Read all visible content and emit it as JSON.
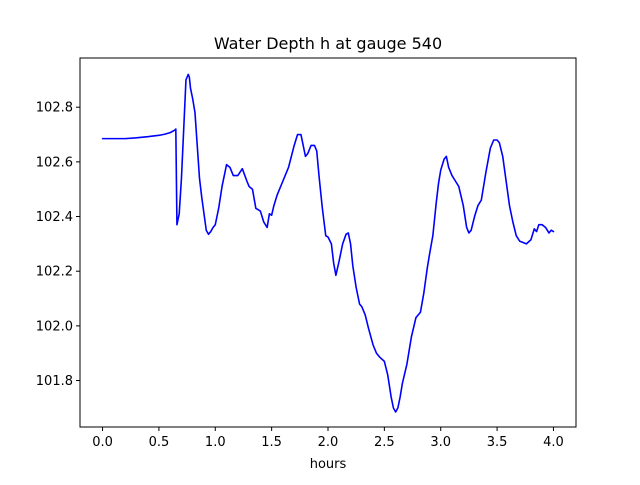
{
  "chart_data": {
    "type": "line",
    "title": "Water Depth h at gauge 540",
    "xlabel": "hours",
    "ylabel": "",
    "xlim": [
      -0.2,
      4.2
    ],
    "ylim": [
      101.63,
      102.98
    ],
    "xticks": [
      0.0,
      0.5,
      1.0,
      1.5,
      2.0,
      2.5,
      3.0,
      3.5,
      4.0
    ],
    "xtick_labels": [
      "0.0",
      "0.5",
      "1.0",
      "1.5",
      "2.0",
      "2.5",
      "3.0",
      "3.5",
      "4.0"
    ],
    "yticks": [
      101.8,
      102.0,
      102.2,
      102.4,
      102.6,
      102.8
    ],
    "ytick_labels": [
      "101.8",
      "102.0",
      "102.2",
      "102.4",
      "102.6",
      "102.8"
    ],
    "grid": false,
    "colors": {
      "line": "#0000ff",
      "axes": "#000000",
      "background": "#ffffff"
    },
    "series": [
      {
        "x": [
          0.0,
          0.1,
          0.2,
          0.3,
          0.4,
          0.5,
          0.55,
          0.6,
          0.64,
          0.65,
          0.66,
          0.68,
          0.7,
          0.72,
          0.74,
          0.76,
          0.77,
          0.78,
          0.8,
          0.82,
          0.84,
          0.86,
          0.88,
          0.9,
          0.92,
          0.94,
          0.96,
          0.98,
          1.0,
          1.03,
          1.06,
          1.1,
          1.13,
          1.16,
          1.2,
          1.24,
          1.28,
          1.3,
          1.33,
          1.36,
          1.4,
          1.43,
          1.46,
          1.48,
          1.5,
          1.52,
          1.55,
          1.6,
          1.65,
          1.7,
          1.73,
          1.76,
          1.78,
          1.8,
          1.82,
          1.85,
          1.88,
          1.9,
          1.92,
          1.95,
          1.98,
          2.0,
          2.03,
          2.05,
          2.07,
          2.1,
          2.13,
          2.16,
          2.18,
          2.2,
          2.22,
          2.25,
          2.28,
          2.3,
          2.33,
          2.36,
          2.4,
          2.43,
          2.46,
          2.5,
          2.53,
          2.56,
          2.58,
          2.6,
          2.62,
          2.64,
          2.66,
          2.7,
          2.74,
          2.78,
          2.82,
          2.85,
          2.88,
          2.9,
          2.93,
          2.96,
          2.98,
          3.0,
          3.03,
          3.05,
          3.07,
          3.1,
          3.13,
          3.16,
          3.2,
          3.23,
          3.25,
          3.27,
          3.3,
          3.33,
          3.36,
          3.4,
          3.44,
          3.47,
          3.5,
          3.52,
          3.55,
          3.58,
          3.61,
          3.64,
          3.67,
          3.7,
          3.73,
          3.76,
          3.8,
          3.83,
          3.85,
          3.87,
          3.9,
          3.93,
          3.96,
          3.98,
          4.0
        ],
        "y": [
          102.685,
          102.685,
          102.685,
          102.688,
          102.692,
          102.697,
          102.701,
          102.707,
          102.716,
          102.72,
          102.37,
          102.41,
          102.54,
          102.72,
          102.9,
          102.92,
          102.91,
          102.87,
          102.83,
          102.78,
          102.66,
          102.54,
          102.47,
          102.41,
          102.35,
          102.335,
          102.345,
          102.36,
          102.37,
          102.43,
          102.51,
          102.59,
          102.58,
          102.55,
          102.55,
          102.575,
          102.53,
          102.51,
          102.5,
          102.43,
          102.42,
          102.38,
          102.36,
          102.41,
          102.405,
          102.44,
          102.48,
          102.53,
          102.58,
          102.66,
          102.7,
          102.7,
          102.66,
          102.62,
          102.63,
          102.66,
          102.66,
          102.64,
          102.55,
          102.43,
          102.33,
          102.325,
          102.3,
          102.23,
          102.185,
          102.24,
          102.3,
          102.335,
          102.34,
          102.3,
          102.22,
          102.14,
          102.08,
          102.07,
          102.04,
          101.99,
          101.93,
          101.9,
          101.885,
          101.87,
          101.82,
          101.74,
          101.7,
          101.685,
          101.7,
          101.74,
          101.79,
          101.86,
          101.96,
          102.03,
          102.05,
          102.12,
          102.21,
          102.26,
          102.33,
          102.45,
          102.52,
          102.57,
          102.61,
          102.62,
          102.58,
          102.55,
          102.53,
          102.51,
          102.44,
          102.36,
          102.34,
          102.35,
          102.4,
          102.44,
          102.46,
          102.56,
          102.65,
          102.68,
          102.68,
          102.67,
          102.62,
          102.53,
          102.44,
          102.38,
          102.33,
          102.31,
          102.305,
          102.3,
          102.315,
          102.355,
          102.345,
          102.37,
          102.37,
          102.36,
          102.34,
          102.35,
          102.345
        ]
      }
    ]
  }
}
